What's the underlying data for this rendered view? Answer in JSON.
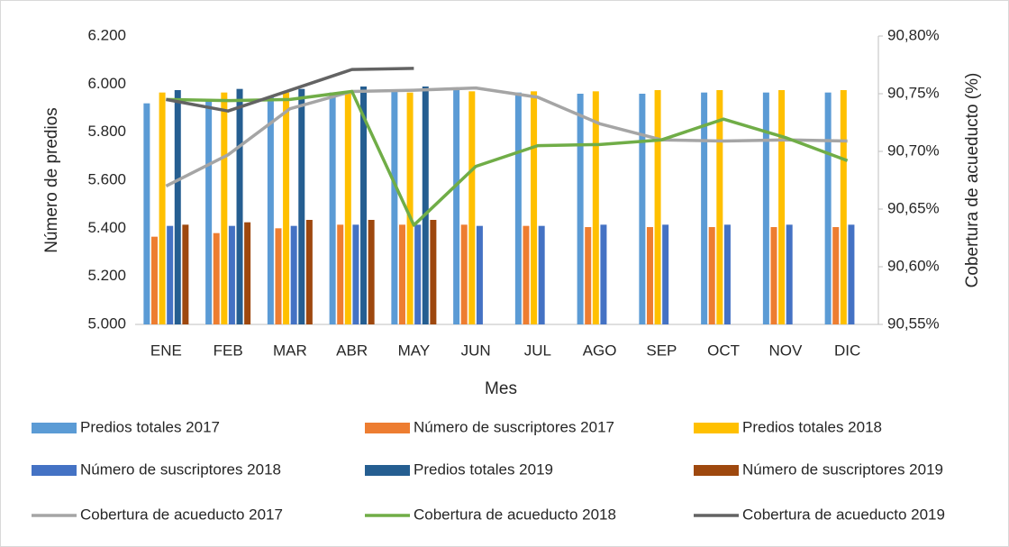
{
  "chart_data": {
    "type": "combo",
    "x_label": "Mes",
    "y_label": "Número de predios",
    "y2_label": "Cobertura de acueducto (%)",
    "categories": [
      "ENE",
      "FEB",
      "MAR",
      "ABR",
      "MAY",
      "JUN",
      "JUL",
      "AGO",
      "SEP",
      "OCT",
      "NOV",
      "DIC"
    ],
    "ylim": [
      5000,
      6200
    ],
    "yticks": [
      {
        "value": 5000,
        "label": "5.000"
      },
      {
        "value": 5200,
        "label": "5.200"
      },
      {
        "value": 5400,
        "label": "5.400"
      },
      {
        "value": 5600,
        "label": "5.600"
      },
      {
        "value": 5800,
        "label": "5.800"
      },
      {
        "value": 6000,
        "label": "6.000"
      },
      {
        "value": 6200,
        "label": "6.200"
      }
    ],
    "y2lim": [
      90.55,
      90.8
    ],
    "y2ticks": [
      {
        "value": 90.55,
        "label": "90,55%"
      },
      {
        "value": 90.6,
        "label": "90,60%"
      },
      {
        "value": 90.65,
        "label": "90,65%"
      },
      {
        "value": 90.7,
        "label": "90,70%"
      },
      {
        "value": 90.75,
        "label": "90,75%"
      },
      {
        "value": 90.8,
        "label": "90,80%"
      }
    ],
    "grid": false,
    "legend": "bottom",
    "series": [
      {
        "name": "Predios totales 2017",
        "type": "bar",
        "color": "#5b9bd5",
        "values": [
          5920,
          5930,
          5950,
          5965,
          5970,
          5975,
          5965,
          5960,
          5960,
          5965,
          5965,
          5965
        ]
      },
      {
        "name": "Número de suscriptores 2017",
        "type": "bar",
        "color": "#ed7d31",
        "values": [
          5365,
          5380,
          5400,
          5415,
          5415,
          5415,
          5410,
          5405,
          5405,
          5405,
          5405,
          5405
        ]
      },
      {
        "name": "Predios totales 2018",
        "type": "bar",
        "color": "#ffc000",
        "values": [
          5965,
          5965,
          5965,
          5965,
          5965,
          5970,
          5970,
          5970,
          5975,
          5975,
          5975,
          5975
        ]
      },
      {
        "name": "Número de suscriptores 2018",
        "type": "bar",
        "color": "#4472c4",
        "values": [
          5410,
          5410,
          5410,
          5415,
          5415,
          5410,
          5410,
          5415,
          5415,
          5415,
          5415,
          5415
        ]
      },
      {
        "name": "Predios totales 2019",
        "type": "bar",
        "color": "#255e91",
        "values": [
          5975,
          5980,
          5980,
          5990,
          5990,
          null,
          null,
          null,
          null,
          null,
          null,
          null
        ]
      },
      {
        "name": "Número de suscriptores 2019",
        "type": "bar",
        "color": "#9e480e",
        "values": [
          5415,
          5425,
          5435,
          5435,
          5435,
          null,
          null,
          null,
          null,
          null,
          null,
          null
        ]
      },
      {
        "name": "Cobertura de acueducto 2017",
        "type": "line",
        "axis": "y2",
        "color": "#a5a5a5",
        "values": [
          90.67,
          90.697,
          90.737,
          90.752,
          90.753,
          90.755,
          90.747,
          90.724,
          90.71,
          90.709,
          90.71,
          90.709
        ]
      },
      {
        "name": "Cobertura de acueducto 2018",
        "type": "line",
        "axis": "y2",
        "color": "#70ad47",
        "values": [
          90.745,
          90.744,
          90.745,
          90.752,
          90.636,
          90.687,
          90.705,
          90.706,
          90.71,
          90.728,
          90.712,
          90.692
        ]
      },
      {
        "name": "Cobertura de acueducto 2019",
        "type": "line",
        "axis": "y2",
        "color": "#636363",
        "values": [
          90.745,
          90.735,
          90.753,
          90.771,
          90.772,
          null,
          null,
          null,
          null,
          null,
          null,
          null
        ]
      }
    ]
  }
}
